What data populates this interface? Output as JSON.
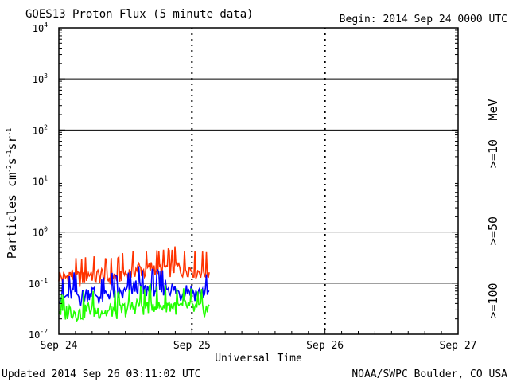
{
  "header": {
    "title": "GOES13 Proton Flux (5 minute data)",
    "begin": "Begin: 2014 Sep 24 0000 UTC"
  },
  "footer": {
    "updated": "Updated 2014 Sep 26 03:11:02 UTC",
    "credit": "NOAA/SWPC Boulder, CO USA"
  },
  "colors": {
    "ge10": "#ff3300",
    "ge50": "#0000ff",
    "ge100": "#22ff00"
  },
  "chart_data": {
    "type": "line",
    "title": "GOES13 Proton Flux (5 minute data)",
    "xlabel": "Universal Time",
    "ylabel": "Particles cm-2s-1sr-1",
    "yscale": "log",
    "ylim": [
      0.01,
      10000
    ],
    "xlim_days": [
      0,
      3
    ],
    "x_tick_labels": [
      "Sep 24",
      "Sep 25",
      "Sep 26",
      "Sep 27"
    ],
    "y_ticks": [
      {
        "value": 0.01,
        "base": "10",
        "exp": "-2"
      },
      {
        "value": 0.1,
        "base": "10",
        "exp": "-1"
      },
      {
        "value": 1,
        "base": "10",
        "exp": "0"
      },
      {
        "value": 10,
        "base": "10",
        "exp": "1"
      },
      {
        "value": 100,
        "base": "10",
        "exp": "2"
      },
      {
        "value": 1000,
        "base": "10",
        "exp": "3"
      },
      {
        "value": 10000,
        "base": "10",
        "exp": "4"
      }
    ],
    "dashed_reference_levels": [
      10
    ],
    "solid_reference_levels": [
      0.1,
      1,
      100,
      1000
    ],
    "data_end_day": 1.13,
    "units_label": "MeV",
    "series": [
      {
        "name": ">=10",
        "color": "#ff3300",
        "x_days": [
          0.0,
          0.04,
          0.08,
          0.12,
          0.16,
          0.2,
          0.24,
          0.28,
          0.32,
          0.36,
          0.4,
          0.44,
          0.48,
          0.52,
          0.56,
          0.6,
          0.64,
          0.68,
          0.72,
          0.76,
          0.8,
          0.84,
          0.88,
          0.92,
          0.96,
          1.0,
          1.04,
          1.08,
          1.13
        ],
        "values": [
          0.14,
          0.12,
          0.15,
          0.13,
          0.12,
          0.14,
          0.16,
          0.13,
          0.15,
          0.12,
          0.14,
          0.13,
          0.16,
          0.15,
          0.18,
          0.2,
          0.17,
          0.19,
          0.21,
          0.18,
          0.2,
          0.19,
          0.22,
          0.18,
          0.2,
          0.19,
          0.17,
          0.18,
          0.16
        ]
      },
      {
        "name": ">=50",
        "color": "#0000ff",
        "x_days": [
          0.0,
          0.04,
          0.08,
          0.12,
          0.16,
          0.2,
          0.24,
          0.28,
          0.32,
          0.36,
          0.4,
          0.44,
          0.48,
          0.52,
          0.56,
          0.6,
          0.64,
          0.68,
          0.72,
          0.76,
          0.8,
          0.84,
          0.88,
          0.92,
          0.96,
          1.0,
          1.04,
          1.08,
          1.13
        ],
        "values": [
          0.06,
          0.05,
          0.06,
          0.07,
          0.05,
          0.06,
          0.07,
          0.06,
          0.05,
          0.06,
          0.07,
          0.06,
          0.06,
          0.07,
          0.08,
          0.09,
          0.07,
          0.08,
          0.08,
          0.07,
          0.09,
          0.08,
          0.07,
          0.06,
          0.08,
          0.07,
          0.06,
          0.07,
          0.06
        ]
      },
      {
        "name": ">=100",
        "color": "#22ff00",
        "x_days": [
          0.0,
          0.04,
          0.08,
          0.12,
          0.16,
          0.2,
          0.24,
          0.28,
          0.32,
          0.36,
          0.4,
          0.44,
          0.48,
          0.52,
          0.56,
          0.6,
          0.64,
          0.68,
          0.72,
          0.76,
          0.8,
          0.84,
          0.88,
          0.92,
          0.96,
          1.0,
          1.04,
          1.08,
          1.13
        ],
        "values": [
          0.03,
          0.025,
          0.03,
          0.028,
          0.025,
          0.03,
          0.032,
          0.028,
          0.03,
          0.026,
          0.03,
          0.028,
          0.03,
          0.032,
          0.035,
          0.04,
          0.033,
          0.038,
          0.04,
          0.034,
          0.04,
          0.037,
          0.035,
          0.032,
          0.036,
          0.033,
          0.03,
          0.032,
          0.03
        ]
      }
    ]
  }
}
